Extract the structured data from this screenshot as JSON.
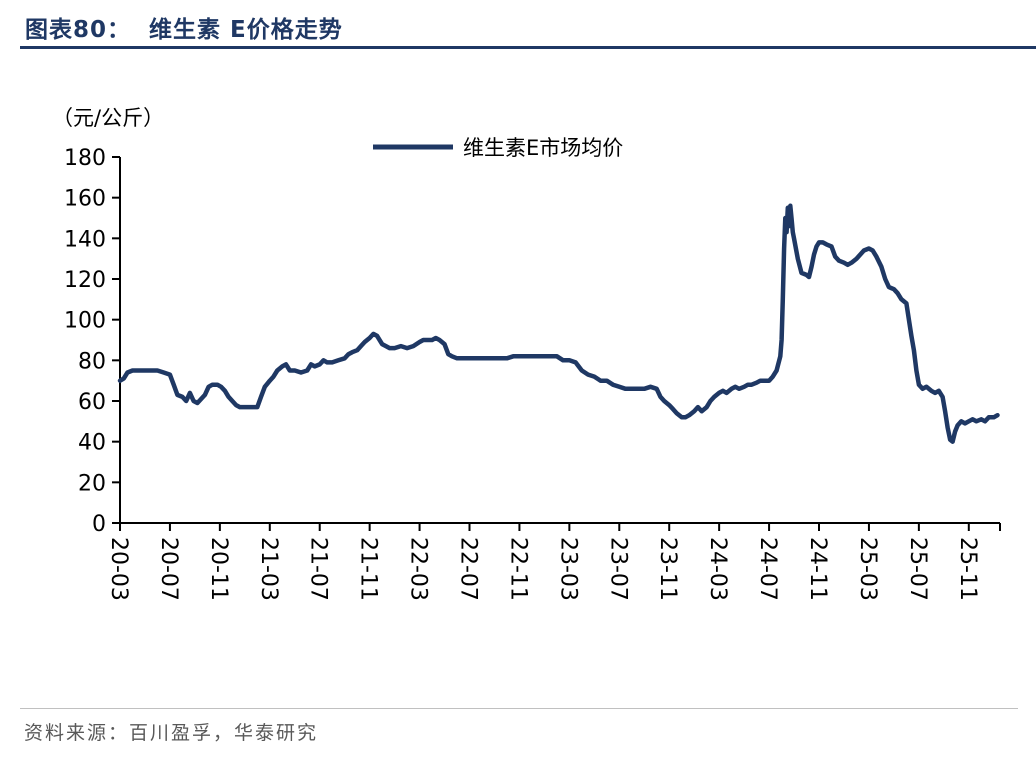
{
  "header": {
    "figure_label": "图表80：",
    "figure_title": "维生素 E价格走势"
  },
  "footer": {
    "source": "资料来源：百川盈孚，华泰研究"
  },
  "colors": {
    "accent": "#1f3864",
    "axis": "#000000",
    "footer_text": "#595959",
    "rule": "#c0c0c0"
  },
  "chart_data": {
    "type": "line",
    "title": "维生素 E价格走势",
    "unit_label": "（元/公斤）",
    "legend": [
      "维生素E市场均价"
    ],
    "legend_position": "top-center",
    "grid": false,
    "ylim": [
      0,
      180
    ],
    "y_ticks": [
      0,
      20,
      40,
      60,
      80,
      100,
      120,
      140,
      160,
      180
    ],
    "x_range_months": [
      0,
      70.5
    ],
    "x_ticks": [
      {
        "label": "20-03",
        "month": 0
      },
      {
        "label": "20-07",
        "month": 4
      },
      {
        "label": "20-11",
        "month": 8
      },
      {
        "label": "21-03",
        "month": 12
      },
      {
        "label": "21-07",
        "month": 16
      },
      {
        "label": "21-11",
        "month": 20
      },
      {
        "label": "22-03",
        "month": 24
      },
      {
        "label": "22-07",
        "month": 28
      },
      {
        "label": "22-11",
        "month": 32
      },
      {
        "label": "23-03",
        "month": 36
      },
      {
        "label": "23-07",
        "month": 40
      },
      {
        "label": "23-11",
        "month": 44
      },
      {
        "label": "24-03",
        "month": 48
      },
      {
        "label": "24-07",
        "month": 52
      },
      {
        "label": "24-11",
        "month": 56
      },
      {
        "label": "25-03",
        "month": 60
      },
      {
        "label": "25-07",
        "month": 64
      },
      {
        "label": "25-11",
        "month": 68
      }
    ],
    "series": [
      {
        "name": "维生素E市场均价",
        "color": "#1f3864",
        "points": [
          [
            0,
            70
          ],
          [
            0.3,
            71
          ],
          [
            0.6,
            74
          ],
          [
            1,
            75
          ],
          [
            1.5,
            75
          ],
          [
            2,
            75
          ],
          [
            2.5,
            75
          ],
          [
            3,
            75
          ],
          [
            3.5,
            74
          ],
          [
            4,
            73
          ],
          [
            4.3,
            68
          ],
          [
            4.6,
            63
          ],
          [
            5,
            62
          ],
          [
            5.3,
            60
          ],
          [
            5.6,
            64
          ],
          [
            5.9,
            60
          ],
          [
            6.2,
            59
          ],
          [
            6.5,
            61
          ],
          [
            6.8,
            63
          ],
          [
            7.1,
            67
          ],
          [
            7.4,
            68
          ],
          [
            7.8,
            68
          ],
          [
            8.1,
            67
          ],
          [
            8.4,
            65
          ],
          [
            8.7,
            62
          ],
          [
            9,
            60
          ],
          [
            9.3,
            58
          ],
          [
            9.6,
            57
          ],
          [
            10,
            57
          ],
          [
            10.5,
            57
          ],
          [
            11,
            57
          ],
          [
            11.3,
            62
          ],
          [
            11.6,
            67
          ],
          [
            12,
            70
          ],
          [
            12.3,
            72
          ],
          [
            12.6,
            75
          ],
          [
            13,
            77
          ],
          [
            13.3,
            78
          ],
          [
            13.6,
            75
          ],
          [
            14,
            75
          ],
          [
            14.5,
            74
          ],
          [
            15,
            75
          ],
          [
            15.3,
            78
          ],
          [
            15.6,
            77
          ],
          [
            16,
            78
          ],
          [
            16.3,
            80
          ],
          [
            16.6,
            79
          ],
          [
            17,
            79
          ],
          [
            17.5,
            80
          ],
          [
            18,
            81
          ],
          [
            18.3,
            83
          ],
          [
            18.6,
            84
          ],
          [
            19,
            85
          ],
          [
            19.3,
            87
          ],
          [
            19.6,
            89
          ],
          [
            20,
            91
          ],
          [
            20.3,
            93
          ],
          [
            20.6,
            92
          ],
          [
            21,
            88
          ],
          [
            21.3,
            87
          ],
          [
            21.6,
            86
          ],
          [
            22,
            86
          ],
          [
            22.5,
            87
          ],
          [
            23,
            86
          ],
          [
            23.5,
            87
          ],
          [
            24,
            89
          ],
          [
            24.3,
            90
          ],
          [
            24.6,
            90
          ],
          [
            25,
            90
          ],
          [
            25.3,
            91
          ],
          [
            25.6,
            90
          ],
          [
            26,
            88
          ],
          [
            26.3,
            83
          ],
          [
            26.6,
            82
          ],
          [
            27,
            81
          ],
          [
            27.5,
            81
          ],
          [
            28,
            81
          ],
          [
            29,
            81
          ],
          [
            30,
            81
          ],
          [
            31,
            81
          ],
          [
            31.5,
            82
          ],
          [
            32,
            82
          ],
          [
            33,
            82
          ],
          [
            34,
            82
          ],
          [
            35,
            82
          ],
          [
            35.5,
            80
          ],
          [
            36,
            80
          ],
          [
            36.5,
            79
          ],
          [
            37,
            75
          ],
          [
            37.5,
            73
          ],
          [
            38,
            72
          ],
          [
            38.5,
            70
          ],
          [
            39,
            70
          ],
          [
            39.5,
            68
          ],
          [
            40,
            67
          ],
          [
            40.5,
            66
          ],
          [
            41,
            66
          ],
          [
            41.5,
            66
          ],
          [
            42,
            66
          ],
          [
            42.5,
            67
          ],
          [
            43,
            66
          ],
          [
            43.3,
            62
          ],
          [
            43.6,
            60
          ],
          [
            44,
            58
          ],
          [
            44.3,
            56
          ],
          [
            44.6,
            54
          ],
          [
            45,
            52
          ],
          [
            45.3,
            52
          ],
          [
            45.6,
            53
          ],
          [
            46,
            55
          ],
          [
            46.3,
            57
          ],
          [
            46.6,
            55
          ],
          [
            47,
            57
          ],
          [
            47.3,
            60
          ],
          [
            47.6,
            62
          ],
          [
            48,
            64
          ],
          [
            48.3,
            65
          ],
          [
            48.6,
            64
          ],
          [
            49,
            66
          ],
          [
            49.3,
            67
          ],
          [
            49.6,
            66
          ],
          [
            50,
            67
          ],
          [
            50.3,
            68
          ],
          [
            50.6,
            68
          ],
          [
            51,
            69
          ],
          [
            51.3,
            70
          ],
          [
            51.6,
            70
          ],
          [
            52,
            70
          ],
          [
            52.3,
            72
          ],
          [
            52.6,
            75
          ],
          [
            52.9,
            82
          ],
          [
            53,
            90
          ],
          [
            53.1,
            110
          ],
          [
            53.2,
            135
          ],
          [
            53.3,
            150
          ],
          [
            53.4,
            143
          ],
          [
            53.5,
            155
          ],
          [
            53.6,
            146
          ],
          [
            53.7,
            156
          ],
          [
            53.8,
            150
          ],
          [
            53.9,
            143
          ],
          [
            54,
            140
          ],
          [
            54.3,
            130
          ],
          [
            54.6,
            123
          ],
          [
            55,
            122
          ],
          [
            55.2,
            121
          ],
          [
            55.4,
            126
          ],
          [
            55.6,
            132
          ],
          [
            55.8,
            136
          ],
          [
            56,
            138
          ],
          [
            56.3,
            138
          ],
          [
            56.6,
            137
          ],
          [
            57,
            136
          ],
          [
            57.3,
            131
          ],
          [
            57.6,
            129
          ],
          [
            58,
            128
          ],
          [
            58.3,
            127
          ],
          [
            58.6,
            128
          ],
          [
            59,
            130
          ],
          [
            59.3,
            132
          ],
          [
            59.6,
            134
          ],
          [
            60,
            135
          ],
          [
            60.3,
            134
          ],
          [
            60.6,
            131
          ],
          [
            61,
            126
          ],
          [
            61.3,
            120
          ],
          [
            61.6,
            116
          ],
          [
            62,
            115
          ],
          [
            62.3,
            113
          ],
          [
            62.6,
            110
          ],
          [
            63,
            108
          ],
          [
            63.2,
            100
          ],
          [
            63.4,
            92
          ],
          [
            63.6,
            85
          ],
          [
            63.8,
            75
          ],
          [
            64,
            68
          ],
          [
            64.3,
            66
          ],
          [
            64.6,
            67
          ],
          [
            65,
            65
          ],
          [
            65.3,
            64
          ],
          [
            65.6,
            65
          ],
          [
            65.9,
            62
          ],
          [
            66.1,
            55
          ],
          [
            66.3,
            47
          ],
          [
            66.5,
            41
          ],
          [
            66.7,
            40
          ],
          [
            66.9,
            45
          ],
          [
            67.1,
            48
          ],
          [
            67.4,
            50
          ],
          [
            67.7,
            49
          ],
          [
            68,
            50
          ],
          [
            68.3,
            51
          ],
          [
            68.6,
            50
          ],
          [
            69,
            51
          ],
          [
            69.3,
            50
          ],
          [
            69.6,
            52
          ],
          [
            70,
            52
          ],
          [
            70.3,
            53
          ]
        ]
      }
    ]
  }
}
